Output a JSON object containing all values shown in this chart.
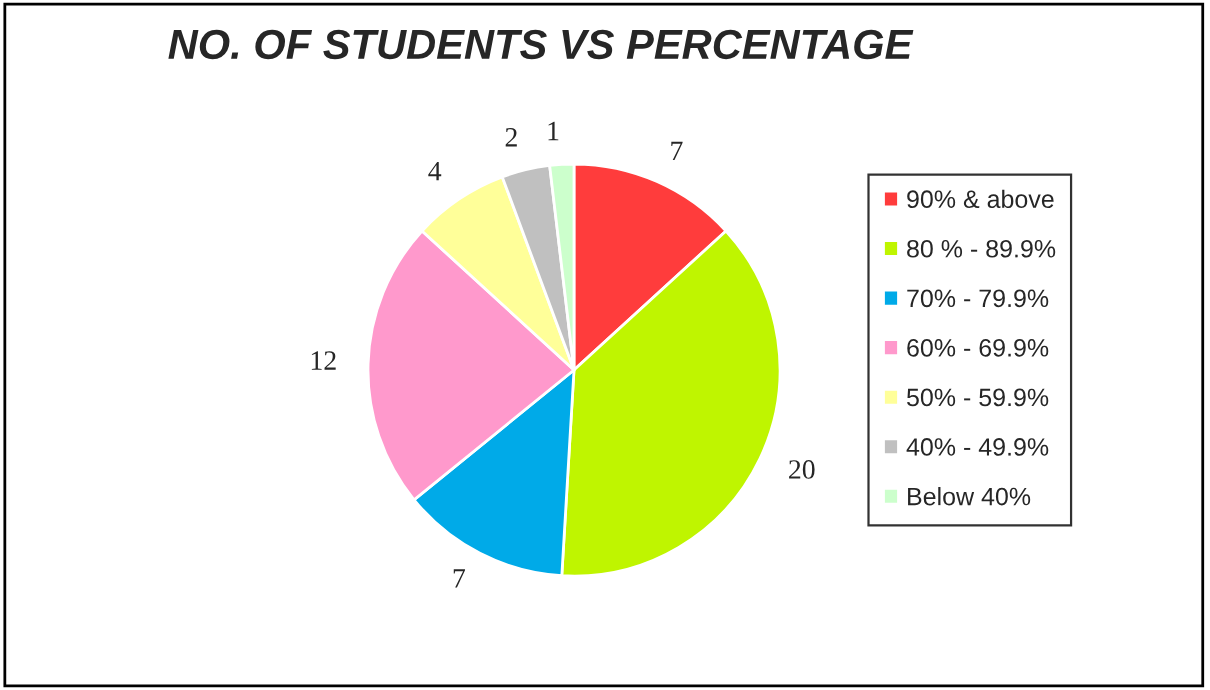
{
  "chart_data": {
    "type": "pie",
    "title": "NO. OF STUDENTS VS PERCENTAGE",
    "categories": [
      "90% & above",
      "80 % - 89.9%",
      "70% - 79.9%",
      "60% - 69.9%",
      "50% - 59.9%",
      "40% - 49.9%",
      "Below 40%"
    ],
    "values": [
      7,
      20,
      7,
      12,
      4,
      2,
      1
    ],
    "colors": [
      "#ff3c3c",
      "#bff500",
      "#00aae8",
      "#ff99cc",
      "#ffff99",
      "#c0c0c0",
      "#ccffcc"
    ],
    "data_labels": true,
    "legend": "right"
  }
}
